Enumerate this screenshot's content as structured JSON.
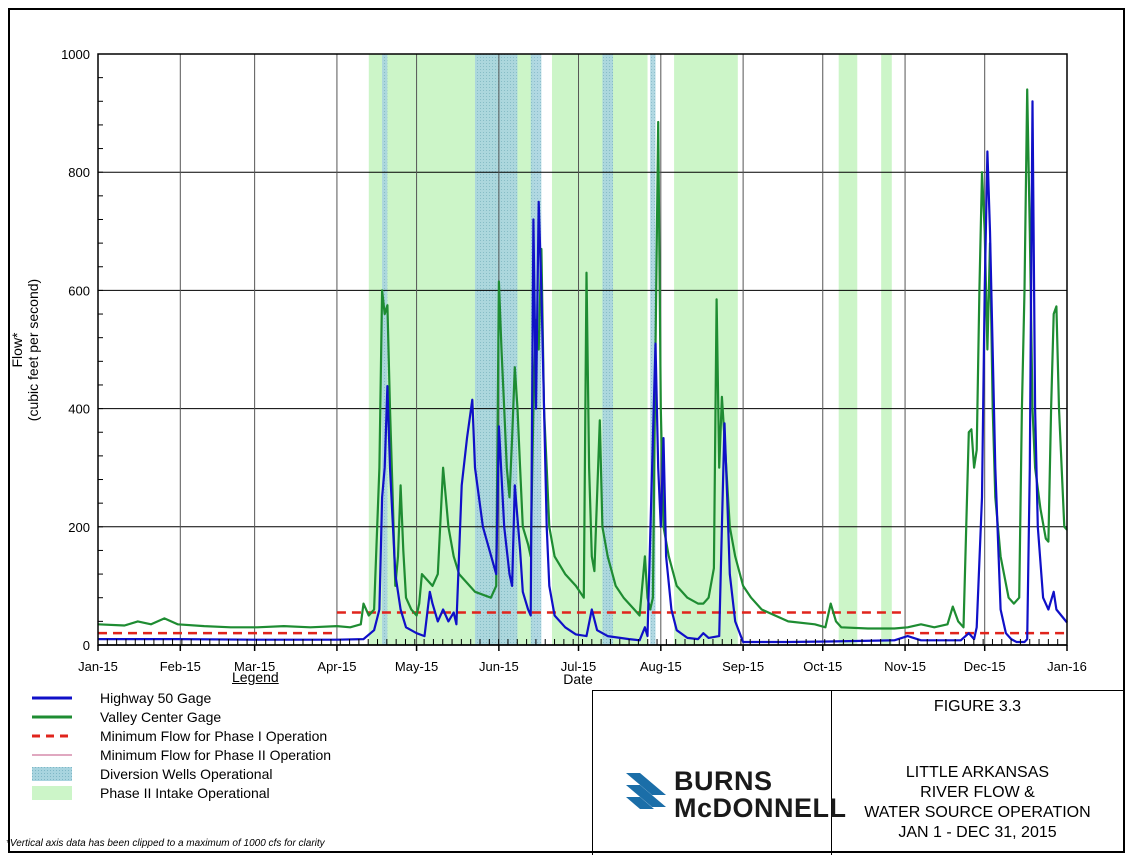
{
  "chart_data": {
    "type": "line",
    "ylabel_line1": "Flow*",
    "ylabel_line2": "(cubic feet per second)",
    "xlabel": "Date",
    "ylim": [
      0,
      1000
    ],
    "yticks": [
      0,
      200,
      400,
      600,
      800,
      1000
    ],
    "xlim_days": [
      0,
      365
    ],
    "xticks": [
      {
        "label": "Jan-15",
        "day": 0
      },
      {
        "label": "Feb-15",
        "day": 31
      },
      {
        "label": "Mar-15",
        "day": 59
      },
      {
        "label": "Apr-15",
        "day": 90
      },
      {
        "label": "May-15",
        "day": 120
      },
      {
        "label": "Jun-15",
        "day": 151
      },
      {
        "label": "Jul-15",
        "day": 181
      },
      {
        "label": "Aug-15",
        "day": 212
      },
      {
        "label": "Sep-15",
        "day": 243
      },
      {
        "label": "Oct-15",
        "day": 273
      },
      {
        "label": "Nov-15",
        "day": 304
      },
      {
        "label": "Dec-15",
        "day": 334
      },
      {
        "label": "Jan-16",
        "day": 365
      }
    ],
    "grid": true,
    "phase2_intake_periods": [
      [
        102,
        164
      ],
      [
        171,
        207
      ],
      [
        217,
        241
      ],
      [
        279,
        286
      ],
      [
        295,
        299
      ]
    ],
    "diversion_wells_periods": [
      [
        107,
        109
      ],
      [
        142,
        158
      ],
      [
        163,
        167
      ],
      [
        190,
        194
      ],
      [
        208,
        210
      ]
    ],
    "series": [
      {
        "name": "Highway 50 Gage",
        "color": "#1010c8",
        "points": [
          [
            0,
            10
          ],
          [
            30,
            10
          ],
          [
            60,
            9
          ],
          [
            90,
            9
          ],
          [
            100,
            10
          ],
          [
            104,
            25
          ],
          [
            106,
            60
          ],
          [
            107,
            250
          ],
          [
            108,
            300
          ],
          [
            109,
            438
          ],
          [
            110,
            300
          ],
          [
            112,
            120
          ],
          [
            114,
            60
          ],
          [
            116,
            30
          ],
          [
            120,
            20
          ],
          [
            123,
            15
          ],
          [
            125,
            90
          ],
          [
            126,
            70
          ],
          [
            128,
            40
          ],
          [
            130,
            60
          ],
          [
            132,
            40
          ],
          [
            134,
            55
          ],
          [
            135,
            35
          ],
          [
            137,
            270
          ],
          [
            139,
            350
          ],
          [
            141,
            415
          ],
          [
            142,
            300
          ],
          [
            145,
            200
          ],
          [
            150,
            120
          ],
          [
            151,
            370
          ],
          [
            153,
            200
          ],
          [
            155,
            120
          ],
          [
            156,
            100
          ],
          [
            157,
            270
          ],
          [
            159,
            160
          ],
          [
            160,
            90
          ],
          [
            162,
            60
          ],
          [
            163,
            50
          ],
          [
            164,
            720
          ],
          [
            165,
            400
          ],
          [
            166,
            750
          ],
          [
            167,
            600
          ],
          [
            169,
            200
          ],
          [
            170,
            100
          ],
          [
            172,
            50
          ],
          [
            176,
            30
          ],
          [
            180,
            18
          ],
          [
            184,
            15
          ],
          [
            186,
            60
          ],
          [
            188,
            25
          ],
          [
            192,
            15
          ],
          [
            200,
            10
          ],
          [
            204,
            8
          ],
          [
            206,
            30
          ],
          [
            207,
            15
          ],
          [
            210,
            510
          ],
          [
            211,
            300
          ],
          [
            212,
            200
          ],
          [
            213,
            350
          ],
          [
            214,
            150
          ],
          [
            216,
            60
          ],
          [
            218,
            25
          ],
          [
            222,
            12
          ],
          [
            226,
            10
          ],
          [
            228,
            20
          ],
          [
            230,
            12
          ],
          [
            234,
            15
          ],
          [
            235,
            200
          ],
          [
            236,
            375
          ],
          [
            237,
            250
          ],
          [
            238,
            120
          ],
          [
            240,
            40
          ],
          [
            243,
            5
          ],
          [
            260,
            5
          ],
          [
            275,
            6
          ],
          [
            300,
            8
          ],
          [
            305,
            15
          ],
          [
            310,
            8
          ],
          [
            325,
            8
          ],
          [
            328,
            20
          ],
          [
            330,
            10
          ],
          [
            331,
            30
          ],
          [
            333,
            250
          ],
          [
            334,
            600
          ],
          [
            335,
            835
          ],
          [
            336,
            700
          ],
          [
            338,
            300
          ],
          [
            340,
            60
          ],
          [
            342,
            20
          ],
          [
            344,
            10
          ],
          [
            346,
            5
          ],
          [
            349,
            5
          ],
          [
            350,
            10
          ],
          [
            351,
            300
          ],
          [
            352,
            920
          ],
          [
            353,
            400
          ],
          [
            354,
            200
          ],
          [
            356,
            80
          ],
          [
            358,
            60
          ],
          [
            360,
            90
          ],
          [
            361,
            60
          ],
          [
            365,
            38
          ]
        ]
      },
      {
        "name": "Valley Center Gage",
        "color": "#1e8c32",
        "points": [
          [
            0,
            35
          ],
          [
            10,
            33
          ],
          [
            15,
            40
          ],
          [
            20,
            35
          ],
          [
            25,
            45
          ],
          [
            30,
            35
          ],
          [
            40,
            32
          ],
          [
            50,
            30
          ],
          [
            60,
            30
          ],
          [
            70,
            32
          ],
          [
            80,
            30
          ],
          [
            90,
            32
          ],
          [
            95,
            30
          ],
          [
            99,
            35
          ],
          [
            100,
            70
          ],
          [
            102,
            50
          ],
          [
            104,
            60
          ],
          [
            106,
            300
          ],
          [
            107,
            600
          ],
          [
            108,
            560
          ],
          [
            109,
            575
          ],
          [
            110,
            400
          ],
          [
            111,
            250
          ],
          [
            112,
            100
          ],
          [
            113,
            150
          ],
          [
            114,
            270
          ],
          [
            115,
            160
          ],
          [
            116,
            80
          ],
          [
            118,
            60
          ],
          [
            120,
            50
          ],
          [
            121,
            70
          ],
          [
            122,
            120
          ],
          [
            124,
            110
          ],
          [
            126,
            100
          ],
          [
            128,
            120
          ],
          [
            130,
            300
          ],
          [
            131,
            250
          ],
          [
            132,
            200
          ],
          [
            134,
            150
          ],
          [
            136,
            120
          ],
          [
            138,
            110
          ],
          [
            140,
            100
          ],
          [
            142,
            90
          ],
          [
            148,
            80
          ],
          [
            150,
            100
          ],
          [
            151,
            615
          ],
          [
            152,
            500
          ],
          [
            153,
            400
          ],
          [
            154,
            300
          ],
          [
            155,
            250
          ],
          [
            156,
            350
          ],
          [
            157,
            470
          ],
          [
            158,
            400
          ],
          [
            159,
            300
          ],
          [
            160,
            200
          ],
          [
            162,
            170
          ],
          [
            163,
            150
          ],
          [
            164,
            400
          ],
          [
            165,
            550
          ],
          [
            166,
            500
          ],
          [
            167,
            670
          ],
          [
            168,
            400
          ],
          [
            169,
            300
          ],
          [
            170,
            200
          ],
          [
            172,
            150
          ],
          [
            176,
            120
          ],
          [
            180,
            100
          ],
          [
            183,
            80
          ],
          [
            184,
            630
          ],
          [
            185,
            300
          ],
          [
            186,
            150
          ],
          [
            187,
            125
          ],
          [
            189,
            380
          ],
          [
            190,
            200
          ],
          [
            192,
            150
          ],
          [
            195,
            100
          ],
          [
            198,
            80
          ],
          [
            202,
            60
          ],
          [
            204,
            50
          ],
          [
            206,
            150
          ],
          [
            207,
            80
          ],
          [
            208,
            60
          ],
          [
            209,
            80
          ],
          [
            210,
            500
          ],
          [
            211,
            885
          ],
          [
            212,
            400
          ],
          [
            213,
            200
          ],
          [
            215,
            150
          ],
          [
            218,
            100
          ],
          [
            222,
            80
          ],
          [
            226,
            70
          ],
          [
            228,
            70
          ],
          [
            230,
            80
          ],
          [
            232,
            130
          ],
          [
            233,
            585
          ],
          [
            234,
            300
          ],
          [
            235,
            420
          ],
          [
            236,
            350
          ],
          [
            238,
            200
          ],
          [
            240,
            150
          ],
          [
            243,
            100
          ],
          [
            246,
            80
          ],
          [
            250,
            60
          ],
          [
            260,
            40
          ],
          [
            270,
            35
          ],
          [
            274,
            30
          ],
          [
            276,
            70
          ],
          [
            278,
            40
          ],
          [
            280,
            30
          ],
          [
            290,
            28
          ],
          [
            300,
            28
          ],
          [
            305,
            30
          ],
          [
            310,
            35
          ],
          [
            315,
            30
          ],
          [
            320,
            35
          ],
          [
            322,
            65
          ],
          [
            324,
            40
          ],
          [
            326,
            30
          ],
          [
            328,
            360
          ],
          [
            329,
            365
          ],
          [
            330,
            300
          ],
          [
            331,
            330
          ],
          [
            332,
            600
          ],
          [
            333,
            800
          ],
          [
            334,
            700
          ],
          [
            335,
            500
          ],
          [
            336,
            680
          ],
          [
            337,
            400
          ],
          [
            338,
            250
          ],
          [
            340,
            150
          ],
          [
            343,
            80
          ],
          [
            345,
            70
          ],
          [
            347,
            80
          ],
          [
            348,
            400
          ],
          [
            349,
            600
          ],
          [
            350,
            940
          ],
          [
            351,
            700
          ],
          [
            352,
            400
          ],
          [
            353,
            300
          ],
          [
            355,
            230
          ],
          [
            357,
            180
          ],
          [
            358,
            175
          ],
          [
            359,
            400
          ],
          [
            360,
            560
          ],
          [
            361,
            573
          ],
          [
            362,
            400
          ],
          [
            364,
            200
          ],
          [
            365,
            195
          ]
        ]
      }
    ],
    "min_flow_phase1": {
      "name": "Minimum Flow for Phase I Operation",
      "color": "#e0241c",
      "segments": [
        [
          [
            0,
            20
          ],
          [
            90,
            20
          ]
        ],
        [
          [
            90,
            55
          ],
          [
            304,
            55
          ]
        ],
        [
          [
            304,
            20
          ],
          [
            365,
            20
          ]
        ]
      ]
    },
    "min_flow_phase2": {
      "name": "Minimum Flow for Phase II Operation",
      "color": "#c05080"
    }
  },
  "legend": {
    "title": "Legend",
    "items": [
      {
        "label": "Highway 50 Gage"
      },
      {
        "label": "Valley Center Gage"
      },
      {
        "label": "Minimum Flow for Phase I Operation"
      },
      {
        "label": "Minimum Flow for Phase II Operation"
      },
      {
        "label": "Diversion Wells Operational"
      },
      {
        "label": "Phase II Intake Operational"
      }
    ]
  },
  "footnote": "*Vertical axis data has been clipped to a maximum of 1000 cfs for clarity",
  "title_block": {
    "figure": "FIGURE 3.3",
    "line1": "LITTLE ARKANSAS",
    "line2": "RIVER FLOW &",
    "line3": "WATER SOURCE OPERATION",
    "line4": "JAN 1 - DEC 31, 2015"
  },
  "logo": {
    "line1": "BURNS",
    "line2": "McDONNELL"
  },
  "colors": {
    "phase2": "#ccf5c8",
    "wells": "#9fd0dc",
    "blue": "#1010c8",
    "green": "#1e8c32",
    "red": "#e0241c"
  }
}
